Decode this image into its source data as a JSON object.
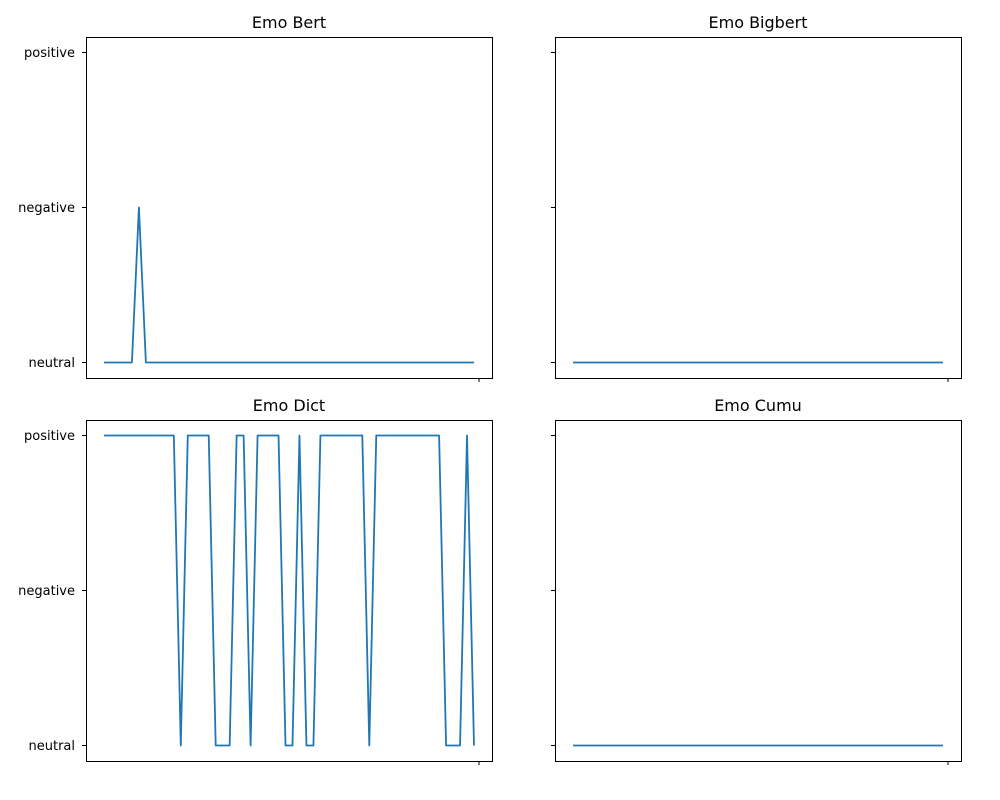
{
  "chart_data": [
    {
      "type": "line",
      "title": "Emo Bert",
      "xlabel": "",
      "ylabel": "",
      "y_categories": [
        "neutral",
        "negative",
        "positive"
      ],
      "y_tick_labels": [
        "neutral",
        "negative",
        "positive"
      ],
      "x_tick_labels": [
        ""
      ],
      "series": [
        {
          "values": [
            "neutral",
            "neutral",
            "neutral",
            "neutral",
            "neutral",
            "negative",
            "neutral",
            "neutral",
            "neutral",
            "neutral",
            "neutral",
            "neutral",
            "neutral",
            "neutral",
            "neutral",
            "neutral",
            "neutral",
            "neutral",
            "neutral",
            "neutral",
            "neutral",
            "neutral",
            "neutral",
            "neutral",
            "neutral",
            "neutral",
            "neutral",
            "neutral",
            "neutral",
            "neutral",
            "neutral",
            "neutral",
            "neutral",
            "neutral",
            "neutral",
            "neutral",
            "neutral",
            "neutral",
            "neutral",
            "neutral",
            "neutral",
            "neutral",
            "neutral",
            "neutral",
            "neutral",
            "neutral",
            "neutral",
            "neutral",
            "neutral",
            "neutral",
            "neutral",
            "neutral",
            "neutral",
            "neutral"
          ]
        }
      ],
      "grid": false,
      "color": "#1f77b4"
    },
    {
      "type": "line",
      "title": "Emo Bigbert",
      "xlabel": "",
      "ylabel": "",
      "y_categories": [
        "neutral",
        "negative",
        "positive"
      ],
      "y_tick_labels": [],
      "x_tick_labels": [
        ""
      ],
      "series": [
        {
          "values": [
            "neutral",
            "neutral",
            "neutral",
            "neutral",
            "neutral",
            "neutral",
            "neutral",
            "neutral",
            "neutral",
            "neutral",
            "neutral",
            "neutral",
            "neutral",
            "neutral",
            "neutral",
            "neutral",
            "neutral",
            "neutral",
            "neutral",
            "neutral",
            "neutral",
            "neutral",
            "neutral",
            "neutral",
            "neutral",
            "neutral",
            "neutral",
            "neutral",
            "neutral",
            "neutral",
            "neutral",
            "neutral",
            "neutral",
            "neutral",
            "neutral",
            "neutral",
            "neutral",
            "neutral",
            "neutral",
            "neutral",
            "neutral",
            "neutral",
            "neutral",
            "neutral",
            "neutral",
            "neutral",
            "neutral",
            "neutral",
            "neutral",
            "neutral",
            "neutral",
            "neutral",
            "neutral",
            "neutral"
          ]
        }
      ],
      "grid": false,
      "color": "#1f77b4"
    },
    {
      "type": "line",
      "title": "Emo Dict",
      "xlabel": "",
      "ylabel": "",
      "y_categories": [
        "neutral",
        "negative",
        "positive"
      ],
      "y_tick_labels": [
        "neutral",
        "negative",
        "positive"
      ],
      "x_tick_labels": [
        ""
      ],
      "series": [
        {
          "values": [
            "positive",
            "positive",
            "positive",
            "positive",
            "positive",
            "positive",
            "positive",
            "positive",
            "positive",
            "positive",
            "positive",
            "neutral",
            "positive",
            "positive",
            "positive",
            "positive",
            "neutral",
            "neutral",
            "neutral",
            "positive",
            "positive",
            "neutral",
            "positive",
            "positive",
            "positive",
            "positive",
            "neutral",
            "neutral",
            "positive",
            "neutral",
            "neutral",
            "positive",
            "positive",
            "positive",
            "positive",
            "positive",
            "positive",
            "positive",
            "neutral",
            "positive",
            "positive",
            "positive",
            "positive",
            "positive",
            "positive",
            "positive",
            "positive",
            "positive",
            "positive",
            "neutral",
            "neutral",
            "neutral",
            "positive",
            "neutral"
          ]
        }
      ],
      "grid": false,
      "color": "#1f77b4"
    },
    {
      "type": "line",
      "title": "Emo Cumu",
      "xlabel": "",
      "ylabel": "",
      "y_categories": [
        "neutral",
        "negative",
        "positive"
      ],
      "y_tick_labels": [],
      "x_tick_labels": [
        ""
      ],
      "series": [
        {
          "values": [
            "neutral",
            "neutral",
            "neutral",
            "neutral",
            "neutral",
            "neutral",
            "neutral",
            "neutral",
            "neutral",
            "neutral",
            "neutral",
            "neutral",
            "neutral",
            "neutral",
            "neutral",
            "neutral",
            "neutral",
            "neutral",
            "neutral",
            "neutral",
            "neutral",
            "neutral",
            "neutral",
            "neutral",
            "neutral",
            "neutral",
            "neutral",
            "neutral",
            "neutral",
            "neutral",
            "neutral",
            "neutral",
            "neutral",
            "neutral",
            "neutral",
            "neutral",
            "neutral",
            "neutral",
            "neutral",
            "neutral",
            "neutral",
            "neutral",
            "neutral",
            "neutral",
            "neutral",
            "neutral",
            "neutral",
            "neutral",
            "neutral",
            "neutral",
            "neutral",
            "neutral",
            "neutral",
            "neutral"
          ]
        }
      ],
      "grid": false,
      "color": "#1f77b4"
    }
  ]
}
